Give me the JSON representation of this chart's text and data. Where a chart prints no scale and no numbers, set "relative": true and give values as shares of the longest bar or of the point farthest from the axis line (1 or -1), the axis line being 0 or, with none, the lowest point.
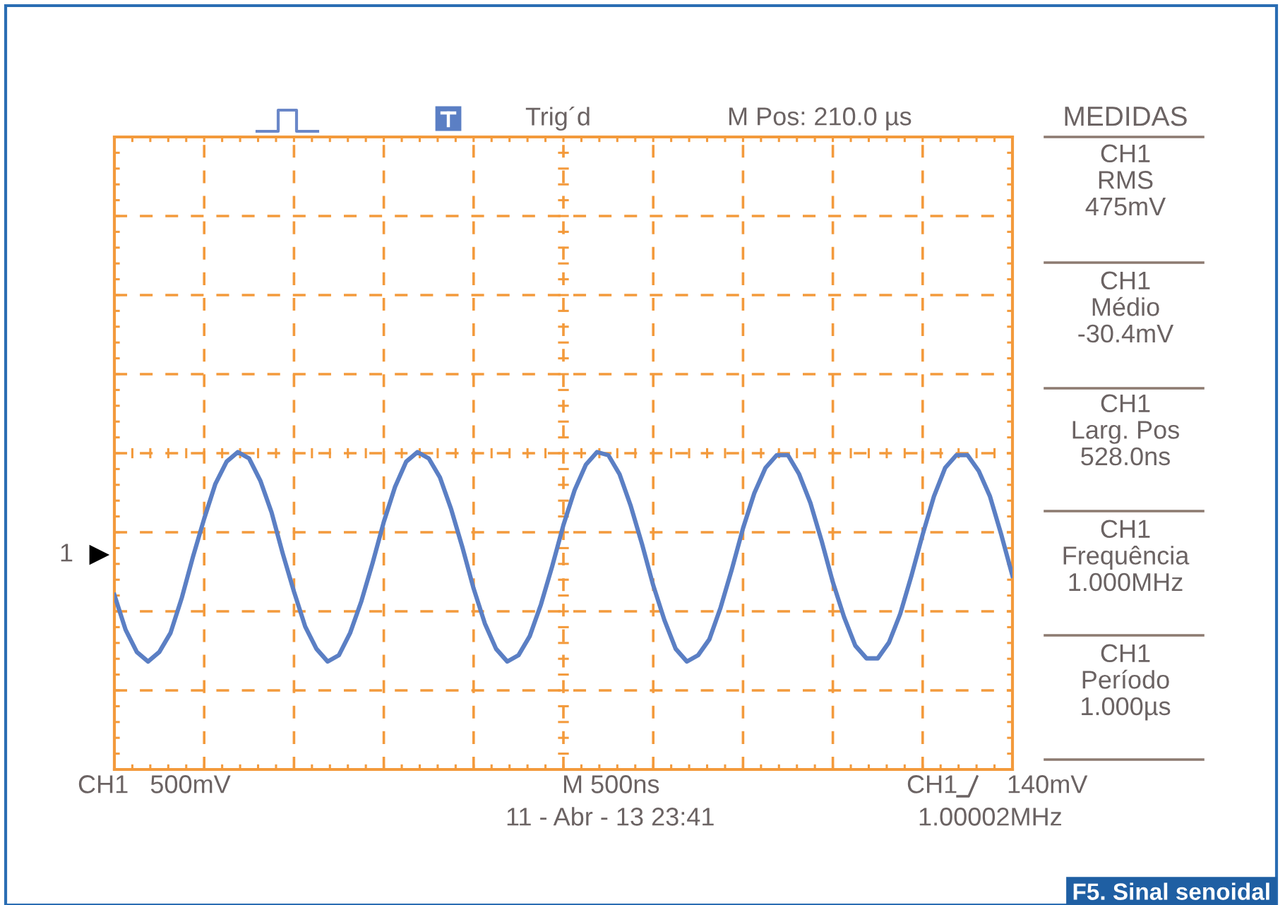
{
  "chart_data": {
    "type": "line",
    "relative": true,
    "grid": true,
    "marker": "none",
    "line_style": "solid",
    "categories": [
      null,
      null,
      null,
      null,
      null,
      null,
      null,
      null,
      null,
      null,
      null,
      null,
      null,
      null,
      null,
      null,
      null,
      null,
      null,
      null,
      null,
      null,
      null,
      null,
      null,
      null,
      null,
      null,
      null,
      null,
      null,
      null,
      null,
      null,
      null,
      null,
      null,
      null,
      null,
      null,
      null,
      null,
      null,
      null,
      null,
      null,
      null,
      null,
      null,
      null,
      null,
      null,
      null,
      null,
      null,
      null,
      null,
      null,
      null,
      null,
      null,
      null,
      null,
      null,
      null,
      null,
      null,
      null,
      null,
      null,
      null,
      null,
      null,
      null,
      null,
      null,
      null,
      null,
      null,
      null,
      null
    ],
    "series": [
      {
        "color": "#5b7fc4",
        "values": [
          0.55,
          0.44,
          0.37,
          0.34,
          0.37,
          0.43,
          0.54,
          0.67,
          0.79,
          0.9,
          0.97,
          1.0,
          0.98,
          0.91,
          0.81,
          0.68,
          0.56,
          0.45,
          0.38,
          0.34,
          0.36,
          0.43,
          0.53,
          0.65,
          0.78,
          0.89,
          0.97,
          1.0,
          0.98,
          0.92,
          0.82,
          0.7,
          0.57,
          0.46,
          0.38,
          0.34,
          0.36,
          0.42,
          0.52,
          0.64,
          0.77,
          0.88,
          0.96,
          1.0,
          0.99,
          0.93,
          0.83,
          0.71,
          0.58,
          0.47,
          0.38,
          0.34,
          0.36,
          0.41,
          0.51,
          0.63,
          0.76,
          0.87,
          0.95,
          0.99,
          0.99,
          0.93,
          0.84,
          0.72,
          0.59,
          0.48,
          0.39,
          0.35,
          0.35,
          0.4,
          0.49,
          0.61,
          0.74,
          0.86,
          0.95,
          0.99,
          0.99,
          0.94,
          0.86,
          0.74,
          0.61
        ]
      }
    ],
    "annotations": [
      "Trig´d",
      "M Pos: 210.0 µs",
      "MEDIDAS",
      "CH1\nRMS\n475mV",
      "CH1\nMédio\n-30.4mV",
      "CH1\nLarg. Pos\n528.0ns",
      "CH1\nFrequência\n1.000MHz",
      "CH1\nPeríodo\n1.000µs",
      "CH1   500mV",
      "M 500ns",
      "CH1",
      "140mV",
      "11 - Abr - 13 23:41",
      "1.00002MHz",
      "1",
      "F5. Sinal senoidal"
    ]
  }
}
